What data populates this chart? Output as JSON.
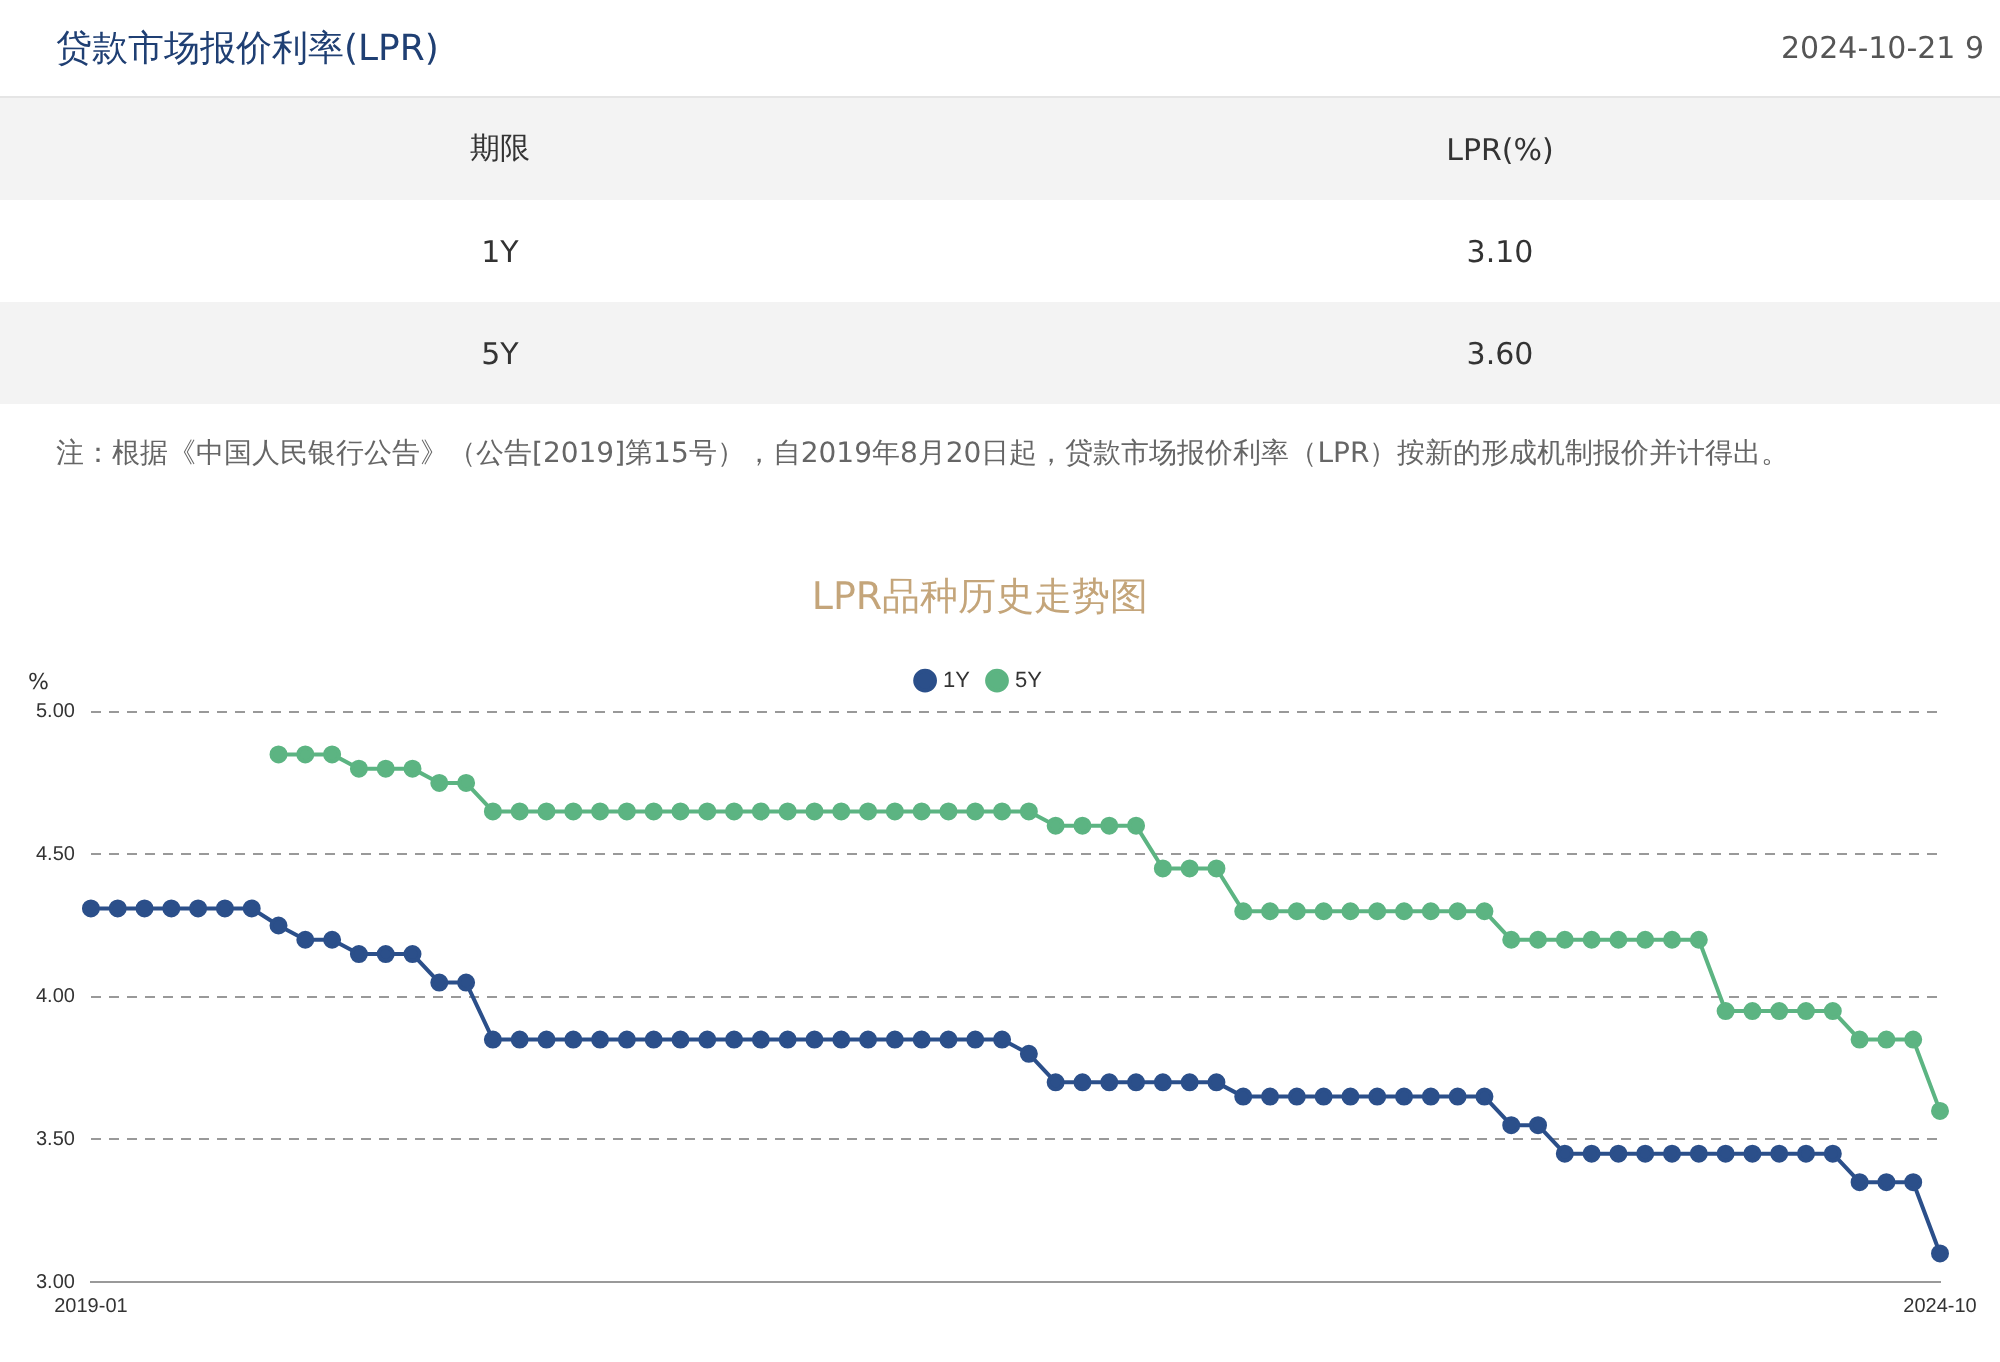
{
  "chart_data": {
    "type": "line",
    "title": "LPR品种历史走势图",
    "ylabel": "%",
    "annotations": [
      "贷款市场报价利率(LPR)",
      "2024-10-21 9",
      "期限",
      "LPR(%)",
      "1Y",
      "3.10",
      "5Y",
      "3.60",
      "注：根据《中国人民银行公告》（公告[2019]第15号），自2019年8月20日起，贷款市场报价利率（LPR）按新的形成机制报价并计得出。"
    ],
    "categories": [
      "2019-01",
      null,
      null,
      null,
      null,
      null,
      null,
      null,
      null,
      null,
      null,
      null,
      null,
      null,
      null,
      null,
      null,
      null,
      null,
      null,
      null,
      null,
      null,
      null,
      null,
      null,
      null,
      null,
      null,
      null,
      null,
      null,
      null,
      null,
      null,
      null,
      null,
      null,
      null,
      null,
      null,
      null,
      null,
      null,
      null,
      null,
      null,
      null,
      null,
      null,
      null,
      null,
      null,
      null,
      null,
      null,
      null,
      null,
      null,
      null,
      null,
      null,
      null,
      null,
      null,
      null,
      null,
      null,
      null,
      "2024-10"
    ],
    "series": [
      {
        "name": "1Y",
        "color": "#2b4f8a",
        "values": [
          4.31,
          4.31,
          4.31,
          4.31,
          4.31,
          4.31,
          4.31,
          4.25,
          4.2,
          4.2,
          4.15,
          4.15,
          4.15,
          4.05,
          4.05,
          3.85,
          3.85,
          3.85,
          3.85,
          3.85,
          3.85,
          3.85,
          3.85,
          3.85,
          3.85,
          3.85,
          3.85,
          3.85,
          3.85,
          3.85,
          3.85,
          3.85,
          3.85,
          3.85,
          3.85,
          3.8,
          3.7,
          3.7,
          3.7,
          3.7,
          3.7,
          3.7,
          3.7,
          3.65,
          3.65,
          3.65,
          3.65,
          3.65,
          3.65,
          3.65,
          3.65,
          3.65,
          3.65,
          3.55,
          3.55,
          3.45,
          3.45,
          3.45,
          3.45,
          3.45,
          3.45,
          3.45,
          3.45,
          3.45,
          3.45,
          3.45,
          3.35,
          3.35,
          3.35,
          3.1
        ]
      },
      {
        "name": "5Y",
        "color": "#5cb482",
        "values": [
          null,
          null,
          null,
          null,
          null,
          null,
          null,
          4.85,
          4.85,
          4.85,
          4.8,
          4.8,
          4.8,
          4.75,
          4.75,
          4.65,
          4.65,
          4.65,
          4.65,
          4.65,
          4.65,
          4.65,
          4.65,
          4.65,
          4.65,
          4.65,
          4.65,
          4.65,
          4.65,
          4.65,
          4.65,
          4.65,
          4.65,
          4.65,
          4.65,
          4.65,
          4.6,
          4.6,
          4.6,
          4.6,
          4.45,
          4.45,
          4.45,
          4.3,
          4.3,
          4.3,
          4.3,
          4.3,
          4.3,
          4.3,
          4.3,
          4.3,
          4.3,
          4.2,
          4.2,
          4.2,
          4.2,
          4.2,
          4.2,
          4.2,
          4.2,
          3.95,
          3.95,
          3.95,
          3.95,
          3.95,
          3.85,
          3.85,
          3.85,
          3.6
        ]
      }
    ],
    "ylim": [
      3,
      5
    ],
    "yticks": [
      {
        "value": 3,
        "label": "3.00"
      },
      {
        "value": 3.5,
        "label": "3.50"
      },
      {
        "value": 4,
        "label": "4.00"
      },
      {
        "value": 4.5,
        "label": "4.50"
      },
      {
        "value": 5,
        "label": "5.00"
      }
    ],
    "grid": "y",
    "legend": "top",
    "marker": "circle",
    "line_style": "solid"
  }
}
